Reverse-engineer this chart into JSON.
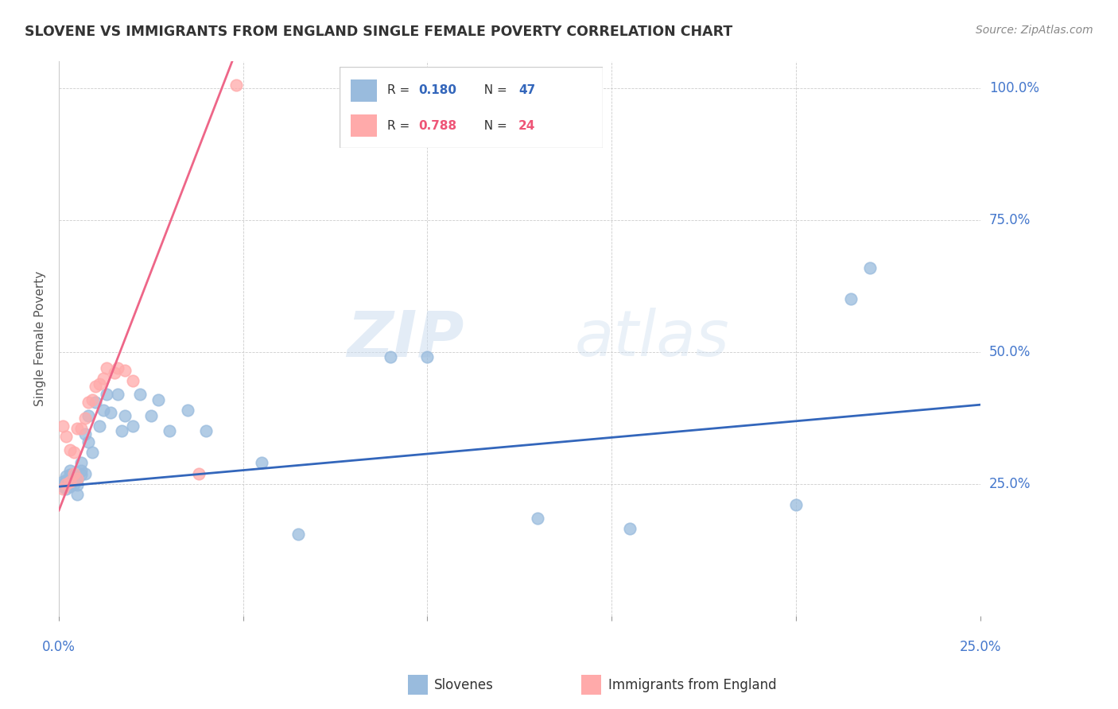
{
  "title": "SLOVENE VS IMMIGRANTS FROM ENGLAND SINGLE FEMALE POVERTY CORRELATION CHART",
  "source": "Source: ZipAtlas.com",
  "ylabel": "Single Female Poverty",
  "x_range": [
    0.0,
    0.25
  ],
  "y_range": [
    0.0,
    1.05
  ],
  "legend_label1": "Slovenes",
  "legend_label2": "Immigrants from England",
  "R1": 0.18,
  "N1": 47,
  "R2": 0.788,
  "N2": 24,
  "color_blue": "#99BBDD",
  "color_pink": "#FFAAAA",
  "line_color_blue": "#3366BB",
  "line_color_pink": "#EE6688",
  "watermark_zip": "ZIP",
  "watermark_atlas": "atlas",
  "blue_line_x0": 0.0,
  "blue_line_y0": 0.245,
  "blue_line_x1": 0.25,
  "blue_line_y1": 0.4,
  "pink_line_x0": 0.0,
  "pink_line_y0": 0.2,
  "pink_line_x1": 0.047,
  "pink_line_y1": 1.05,
  "slovene_x": [
    0.001,
    0.001,
    0.001,
    0.002,
    0.002,
    0.002,
    0.003,
    0.003,
    0.003,
    0.003,
    0.004,
    0.004,
    0.005,
    0.005,
    0.005,
    0.006,
    0.006,
    0.006,
    0.007,
    0.007,
    0.008,
    0.008,
    0.009,
    0.01,
    0.011,
    0.012,
    0.013,
    0.014,
    0.016,
    0.017,
    0.018,
    0.02,
    0.022,
    0.025,
    0.027,
    0.03,
    0.035,
    0.04,
    0.055,
    0.065,
    0.09,
    0.1,
    0.13,
    0.155,
    0.2,
    0.215,
    0.22
  ],
  "slovene_y": [
    0.245,
    0.25,
    0.255,
    0.24,
    0.258,
    0.265,
    0.245,
    0.255,
    0.268,
    0.275,
    0.25,
    0.265,
    0.248,
    0.258,
    0.23,
    0.268,
    0.275,
    0.29,
    0.27,
    0.345,
    0.33,
    0.38,
    0.31,
    0.405,
    0.36,
    0.39,
    0.42,
    0.385,
    0.42,
    0.35,
    0.38,
    0.36,
    0.42,
    0.38,
    0.41,
    0.35,
    0.39,
    0.35,
    0.29,
    0.155,
    0.49,
    0.49,
    0.185,
    0.165,
    0.21,
    0.6,
    0.66
  ],
  "england_x": [
    0.001,
    0.001,
    0.002,
    0.002,
    0.003,
    0.003,
    0.004,
    0.004,
    0.005,
    0.005,
    0.006,
    0.007,
    0.008,
    0.009,
    0.01,
    0.011,
    0.012,
    0.013,
    0.015,
    0.016,
    0.018,
    0.02,
    0.038,
    0.048
  ],
  "england_y": [
    0.24,
    0.36,
    0.25,
    0.34,
    0.255,
    0.315,
    0.27,
    0.31,
    0.26,
    0.355,
    0.355,
    0.375,
    0.405,
    0.41,
    0.435,
    0.44,
    0.45,
    0.47,
    0.46,
    0.47,
    0.465,
    0.445,
    0.27,
    1.005
  ]
}
